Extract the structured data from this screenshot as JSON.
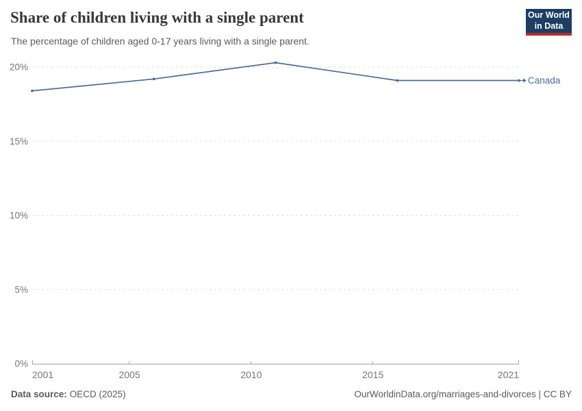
{
  "header": {
    "title": "Share of children living with a single parent",
    "subtitle": "The percentage of children aged 0-17 years living with a single parent.",
    "logo_line1": "Our World",
    "logo_line2": "in Data"
  },
  "chart_data": {
    "type": "line",
    "title": "Share of children living with a single parent",
    "subtitle": "The percentage of children aged 0-17 years living with a single parent.",
    "x": [
      2001,
      2006,
      2011,
      2016,
      2021
    ],
    "series": [
      {
        "name": "Canada",
        "values": [
          18.4,
          19.2,
          20.3,
          19.1,
          19.1
        ],
        "color": "#4c6a9d"
      }
    ],
    "xlim": [
      2001,
      2021
    ],
    "ylim": [
      0,
      20
    ],
    "xticks": [
      2001,
      2005,
      2010,
      2015,
      2021
    ],
    "yticks": [
      0,
      5,
      10,
      15,
      20
    ],
    "ytick_suffix": "%",
    "grid": "horizontal-dashed",
    "legend_position": "end-of-line-label",
    "end_label": "Canada"
  },
  "footer": {
    "source_label": "Data source:",
    "source_value": "OECD (2025)",
    "attribution": "OurWorldinData.org/marriages-and-divorces | CC BY"
  },
  "colors": {
    "series_line": "#4c6a9d",
    "logo_bg": "#1d3d63",
    "logo_stripe": "#b0322d",
    "grid": "#dedede",
    "axis": "#a1a1a1",
    "tick_label": "#757575",
    "title_text": "#383838",
    "muted_text": "#5b5b5b"
  }
}
